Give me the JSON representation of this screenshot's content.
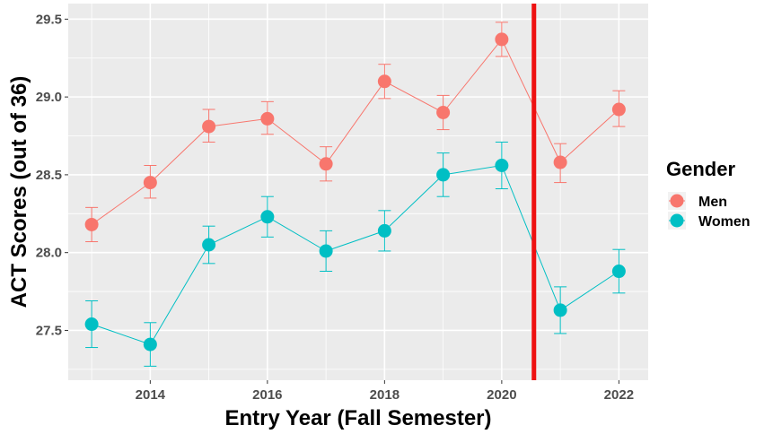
{
  "chart_data": {
    "type": "line",
    "xlabel": "Entry Year (Fall Semester)",
    "ylabel": "ACT Scores (out of 36)",
    "xlim": [
      2012.6,
      2022.5
    ],
    "ylim": [
      27.18,
      29.6
    ],
    "x_ticks": [
      2014,
      2016,
      2018,
      2020,
      2022
    ],
    "y_ticks": [
      27.5,
      28.0,
      28.5,
      29.0,
      29.5
    ],
    "x_tick_labels": [
      "2014",
      "2016",
      "2018",
      "2020",
      "2022"
    ],
    "y_tick_labels": [
      "27.5",
      "28.0",
      "28.5",
      "29.0",
      "29.5"
    ],
    "x": [
      2013,
      2014,
      2015,
      2016,
      2017,
      2018,
      2019,
      2020,
      2021,
      2022
    ],
    "series": [
      {
        "name": "Men",
        "color": "#F8766D",
        "values": [
          28.18,
          28.45,
          28.81,
          28.86,
          28.57,
          29.1,
          28.9,
          29.37,
          28.58,
          28.92
        ],
        "err_low": [
          28.07,
          28.35,
          28.71,
          28.76,
          28.46,
          28.99,
          28.79,
          29.26,
          28.45,
          28.81
        ],
        "err_high": [
          28.29,
          28.56,
          28.92,
          28.97,
          28.68,
          29.21,
          29.01,
          29.48,
          28.7,
          29.04
        ]
      },
      {
        "name": "Women",
        "color": "#00BFC4",
        "values": [
          27.54,
          27.41,
          28.05,
          28.23,
          28.01,
          28.14,
          28.5,
          28.56,
          27.63,
          27.88
        ],
        "err_low": [
          27.39,
          27.27,
          27.93,
          28.1,
          27.88,
          28.01,
          28.36,
          28.41,
          27.48,
          27.74
        ],
        "err_high": [
          27.69,
          27.55,
          28.17,
          28.36,
          28.14,
          28.27,
          28.64,
          28.71,
          27.78,
          28.02
        ]
      }
    ],
    "vline": {
      "x": 2020.55,
      "color": "#EE1111"
    },
    "grid": true,
    "legend": {
      "title": "Gender",
      "position": "right"
    },
    "panel_background": "#EBEBEB"
  }
}
